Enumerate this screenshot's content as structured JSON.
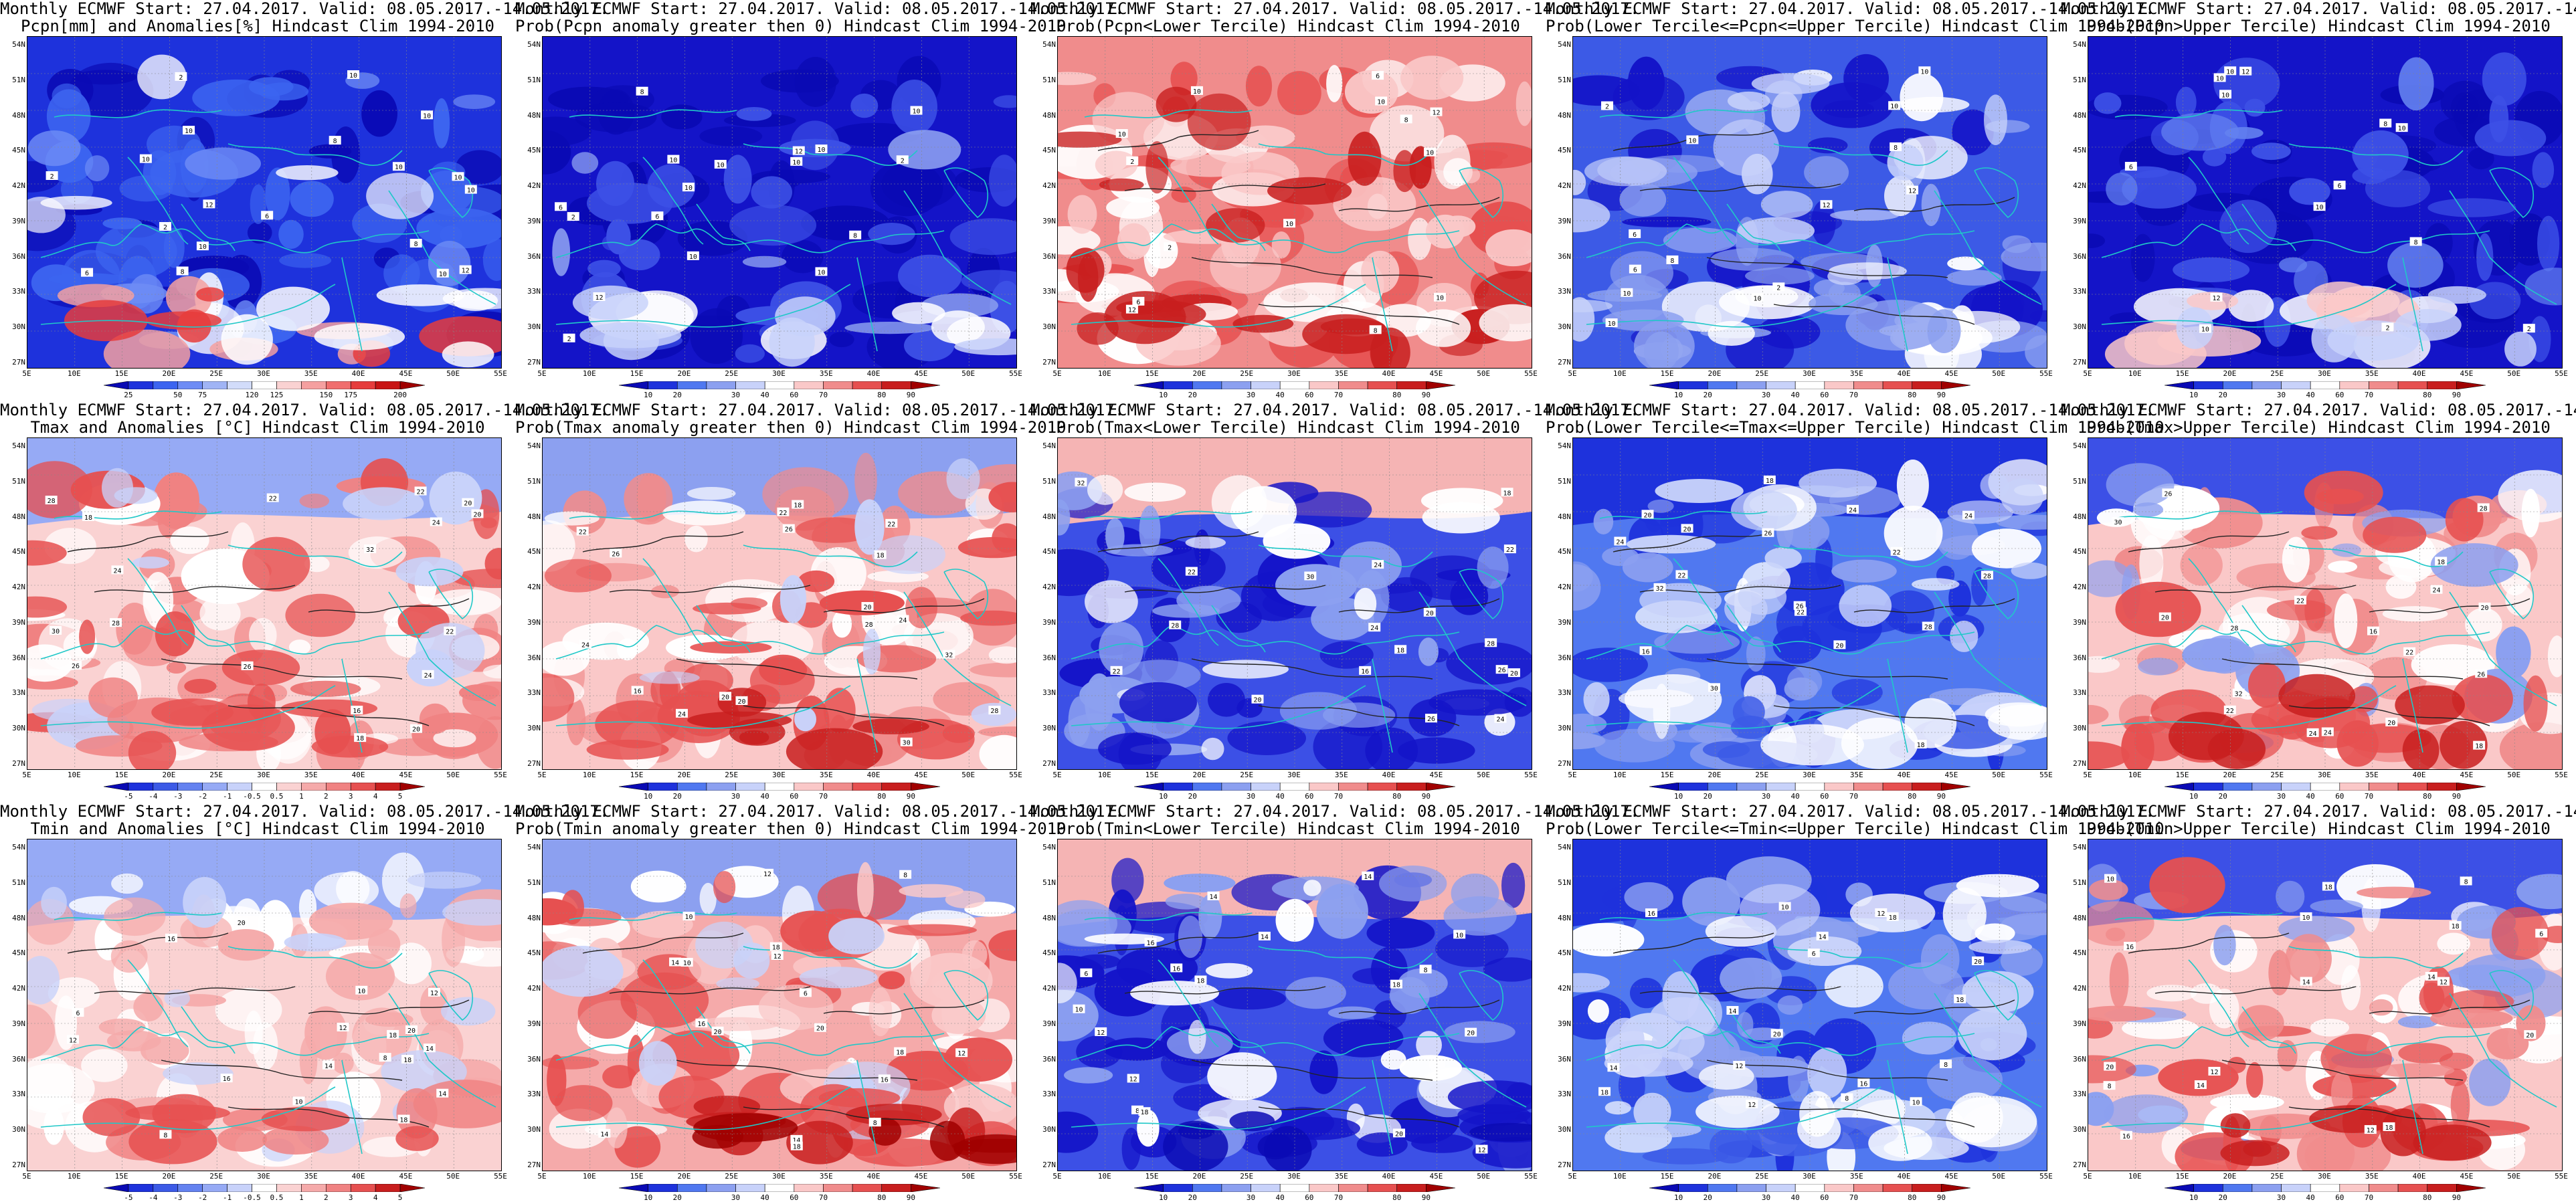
{
  "title_line1": "Monthly ECMWF Start: 27.04.2017. Valid: 08.05.2017.-14.05.2017.",
  "lat_labels": [
    "54N",
    "51N",
    "48N",
    "45N",
    "42N",
    "39N",
    "36N",
    "33N",
    "30N",
    "27N"
  ],
  "lon_labels": [
    "5E",
    "10E",
    "15E",
    "20E",
    "25E",
    "30E",
    "35E",
    "40E",
    "45E",
    "50E",
    "55E"
  ],
  "colors": {
    "deep_blue": "#1414d0",
    "mid_blue": "#3c50e6",
    "light_blue": "#a0b4f0",
    "white": "#ffffff",
    "light_red": "#f5b4b4",
    "mid_red": "#e65050",
    "deep_red": "#b40a0a",
    "coast": "#20c8c8"
  },
  "scales": {
    "pcpn": {
      "labels": [
        "25",
        "50",
        "75",
        "120",
        "125",
        "150",
        "175",
        "200"
      ],
      "colors": [
        "#0a0ab4",
        "#1e32dc",
        "#3c64f0",
        "#6e8cf5",
        "#a0b4f5",
        "#d2dcfa",
        "#ffffff",
        "#fad2d2",
        "#f5a0a0",
        "#f06e6e",
        "#e63c3c",
        "#c81414",
        "#a00000"
      ]
    },
    "prob": {
      "labels": [
        "10",
        "20",
        "30",
        "40",
        "60",
        "70",
        "80",
        "90"
      ],
      "colors": [
        "#0a0ab4",
        "#1e32dc",
        "#5078f0",
        "#8ca0f0",
        "#c8d2fa",
        "#ffffff",
        "#fac8c8",
        "#f08c8c",
        "#e65050",
        "#c81e1e",
        "#a00000"
      ]
    },
    "temp": {
      "labels": [
        "-5",
        "-4",
        "-3",
        "-2",
        "-1",
        "-0.5",
        "0.5",
        "1",
        "2",
        "3",
        "4",
        "5"
      ],
      "colors": [
        "#0a0ab4",
        "#1e32dc",
        "#3c5ae6",
        "#6482f0",
        "#96aaf5",
        "#c8d2fa",
        "#ffffff",
        "#fad2d2",
        "#f5aaaa",
        "#f08282",
        "#e65050",
        "#c81e1e",
        "#a00000"
      ]
    }
  },
  "panels": [
    {
      "line2": "Pcpn[mm] and Anomalies[%] Hindcast Clim 1994-2010",
      "scale": "pcpn",
      "field": "pcpn_anom",
      "contours": false,
      "labels": [
        "10",
        "10",
        "8",
        "10",
        "12",
        "12",
        "10",
        "10",
        "10",
        "10",
        "10",
        "8",
        "10",
        "8",
        "6",
        "6",
        "2",
        "2",
        "2"
      ]
    },
    {
      "line2": "Prob(Pcpn anomaly greater then 0) Hindcast Clim 1994-2010",
      "scale": "prob",
      "field": "pcpn_pos",
      "contours": false,
      "labels": [
        "10",
        "10",
        "8",
        "10",
        "12",
        "12",
        "10",
        "10",
        "10",
        "10",
        "8",
        "10",
        "6",
        "6",
        "2",
        "2",
        "2"
      ]
    },
    {
      "line2": "Prob(Pcpn<Lower Tercile) Hindcast Clim 1994-2010",
      "scale": "prob",
      "field": "pcpn_low",
      "contours": true,
      "labels": [
        "10",
        "10",
        "8",
        "10",
        "12",
        "12",
        "10",
        "10",
        "10",
        "8",
        "6",
        "6",
        "2",
        "2"
      ]
    },
    {
      "line2": "Prob(Lower Tercile<=Pcpn<=Upper Tercile) Hindcast Clim 1994-2010",
      "scale": "prob",
      "field": "pcpn_mid",
      "contours": true,
      "labels": [
        "10",
        "10",
        "8",
        "10",
        "12",
        "12",
        "10",
        "10",
        "10",
        "8",
        "6",
        "6",
        "2",
        "2"
      ]
    },
    {
      "line2": "Prob(Pcpn>Upper Tercile) Hindcast Clim 1994-2010",
      "scale": "prob",
      "field": "pcpn_high",
      "contours": false,
      "labels": [
        "10",
        "10",
        "8",
        "10",
        "12",
        "12",
        "10",
        "10",
        "10",
        "8",
        "6",
        "6",
        "2",
        "2"
      ]
    },
    {
      "line2": "Tmax and Anomalies [°C] Hindcast Clim 1994-2010",
      "scale": "temp",
      "field": "tmax_anom",
      "contours": true,
      "labels": [
        "16",
        "18",
        "18",
        "20",
        "20",
        "22",
        "22",
        "24",
        "24",
        "26",
        "28",
        "20",
        "22",
        "24",
        "26",
        "28",
        "30",
        "32"
      ]
    },
    {
      "line2": "Prob(Tmax anomaly greater then 0) Hindcast Clim 1994-2010",
      "scale": "prob",
      "field": "tmax_pos",
      "contours": true,
      "labels": [
        "16",
        "18",
        "18",
        "20",
        "20",
        "22",
        "22",
        "24",
        "24",
        "26",
        "28",
        "20",
        "22",
        "24",
        "26",
        "28",
        "30",
        "32"
      ]
    },
    {
      "line2": "Prob(Tmax<Lower Tercile) Hindcast Clim 1994-2010",
      "scale": "prob",
      "field": "tmax_low",
      "contours": true,
      "labels": [
        "16",
        "18",
        "18",
        "20",
        "20",
        "22",
        "22",
        "24",
        "24",
        "26",
        "28",
        "20",
        "22",
        "24",
        "26",
        "28",
        "30",
        "32"
      ]
    },
    {
      "line2": "Prob(Lower Tercile<=Tmax<=Upper Tercile) Hindcast Clim 1994-2010",
      "scale": "prob",
      "field": "tmax_mid",
      "contours": true,
      "labels": [
        "16",
        "18",
        "18",
        "20",
        "20",
        "22",
        "22",
        "24",
        "24",
        "26",
        "28",
        "20",
        "22",
        "24",
        "26",
        "28",
        "30",
        "32"
      ]
    },
    {
      "line2": "Prob(Tmax>Upper Tercile) Hindcast Clim 1994-2010",
      "scale": "prob",
      "field": "tmax_high",
      "contours": true,
      "labels": [
        "16",
        "18",
        "18",
        "20",
        "20",
        "22",
        "22",
        "24",
        "24",
        "26",
        "28",
        "20",
        "22",
        "24",
        "26",
        "28",
        "30",
        "32"
      ]
    },
    {
      "line2": "Tmin and Anomalies [°C] Hindcast Clim 1994-2010",
      "scale": "temp",
      "field": "tmin_anom",
      "contours": true,
      "labels": [
        "6",
        "8",
        "8",
        "10",
        "10",
        "12",
        "12",
        "14",
        "14",
        "16",
        "18",
        "12",
        "14",
        "16",
        "18",
        "20",
        "18",
        "20"
      ]
    },
    {
      "line2": "Prob(Tmin anomaly greater then 0) Hindcast Clim 1994-2010",
      "scale": "prob",
      "field": "tmin_pos",
      "contours": true,
      "labels": [
        "6",
        "8",
        "8",
        "10",
        "10",
        "12",
        "12",
        "14",
        "14",
        "16",
        "18",
        "12",
        "14",
        "16",
        "18",
        "20",
        "18",
        "20"
      ]
    },
    {
      "line2": "Prob(Tmin<Lower Tercile) Hindcast Clim 1994-2010",
      "scale": "prob",
      "field": "tmin_low",
      "contours": true,
      "labels": [
        "6",
        "8",
        "8",
        "10",
        "10",
        "12",
        "12",
        "14",
        "14",
        "16",
        "18",
        "12",
        "14",
        "16",
        "18",
        "20",
        "18",
        "20"
      ]
    },
    {
      "line2": "Prob(Lower Tercile<=Tmin<=Upper Tercile) Hindcast Clim 1994-2010",
      "scale": "prob",
      "field": "tmin_mid",
      "contours": true,
      "labels": [
        "6",
        "8",
        "8",
        "10",
        "10",
        "12",
        "12",
        "14",
        "14",
        "16",
        "18",
        "12",
        "14",
        "16",
        "18",
        "20",
        "18",
        "20"
      ]
    },
    {
      "line2": "Prob(Tmin>Upper Tercile) Hindcast Clim 1994-2010",
      "scale": "prob",
      "field": "tmin_high",
      "contours": true,
      "labels": [
        "6",
        "8",
        "8",
        "10",
        "10",
        "12",
        "12",
        "14",
        "14",
        "16",
        "18",
        "12",
        "14",
        "16",
        "18",
        "20",
        "18",
        "20"
      ]
    }
  ]
}
